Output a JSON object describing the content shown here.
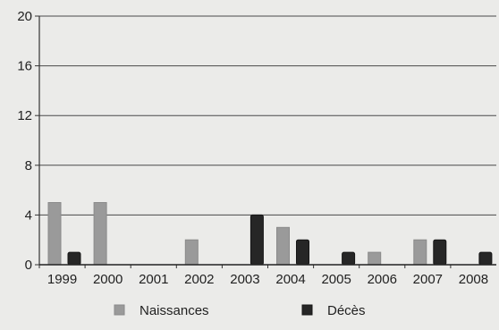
{
  "chart_data": {
    "type": "bar",
    "title": "",
    "xlabel": "",
    "ylabel": "",
    "categories": [
      "1999",
      "2000",
      "2001",
      "2002",
      "2003",
      "2004",
      "2005",
      "2006",
      "2007",
      "2008"
    ],
    "ylim": [
      0,
      20
    ],
    "yticks": [
      0,
      4,
      8,
      12,
      16,
      20
    ],
    "grid": true,
    "legend_position": "bottom",
    "series": [
      {
        "name": "Naissances",
        "color": "#9a9a9a",
        "values": [
          5,
          5,
          0,
          2,
          0,
          3,
          0,
          1,
          2,
          0
        ]
      },
      {
        "name": "Décès",
        "color": "#262626",
        "values": [
          1,
          0,
          0,
          0,
          4,
          2,
          1,
          0,
          2,
          1
        ]
      }
    ]
  }
}
